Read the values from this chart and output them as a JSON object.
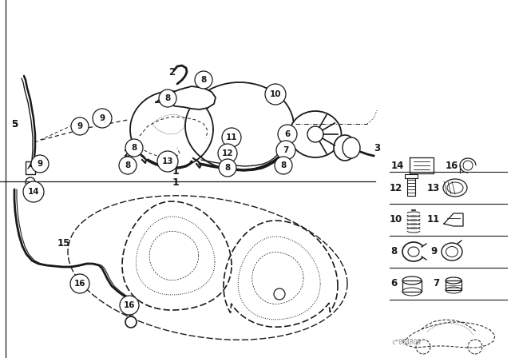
{
  "bg_color": "#ffffff",
  "line_color": "#1a1a1a",
  "fig_width": 6.4,
  "fig_height": 4.48,
  "dpi": 100,
  "watermark": "c*084R09"
}
